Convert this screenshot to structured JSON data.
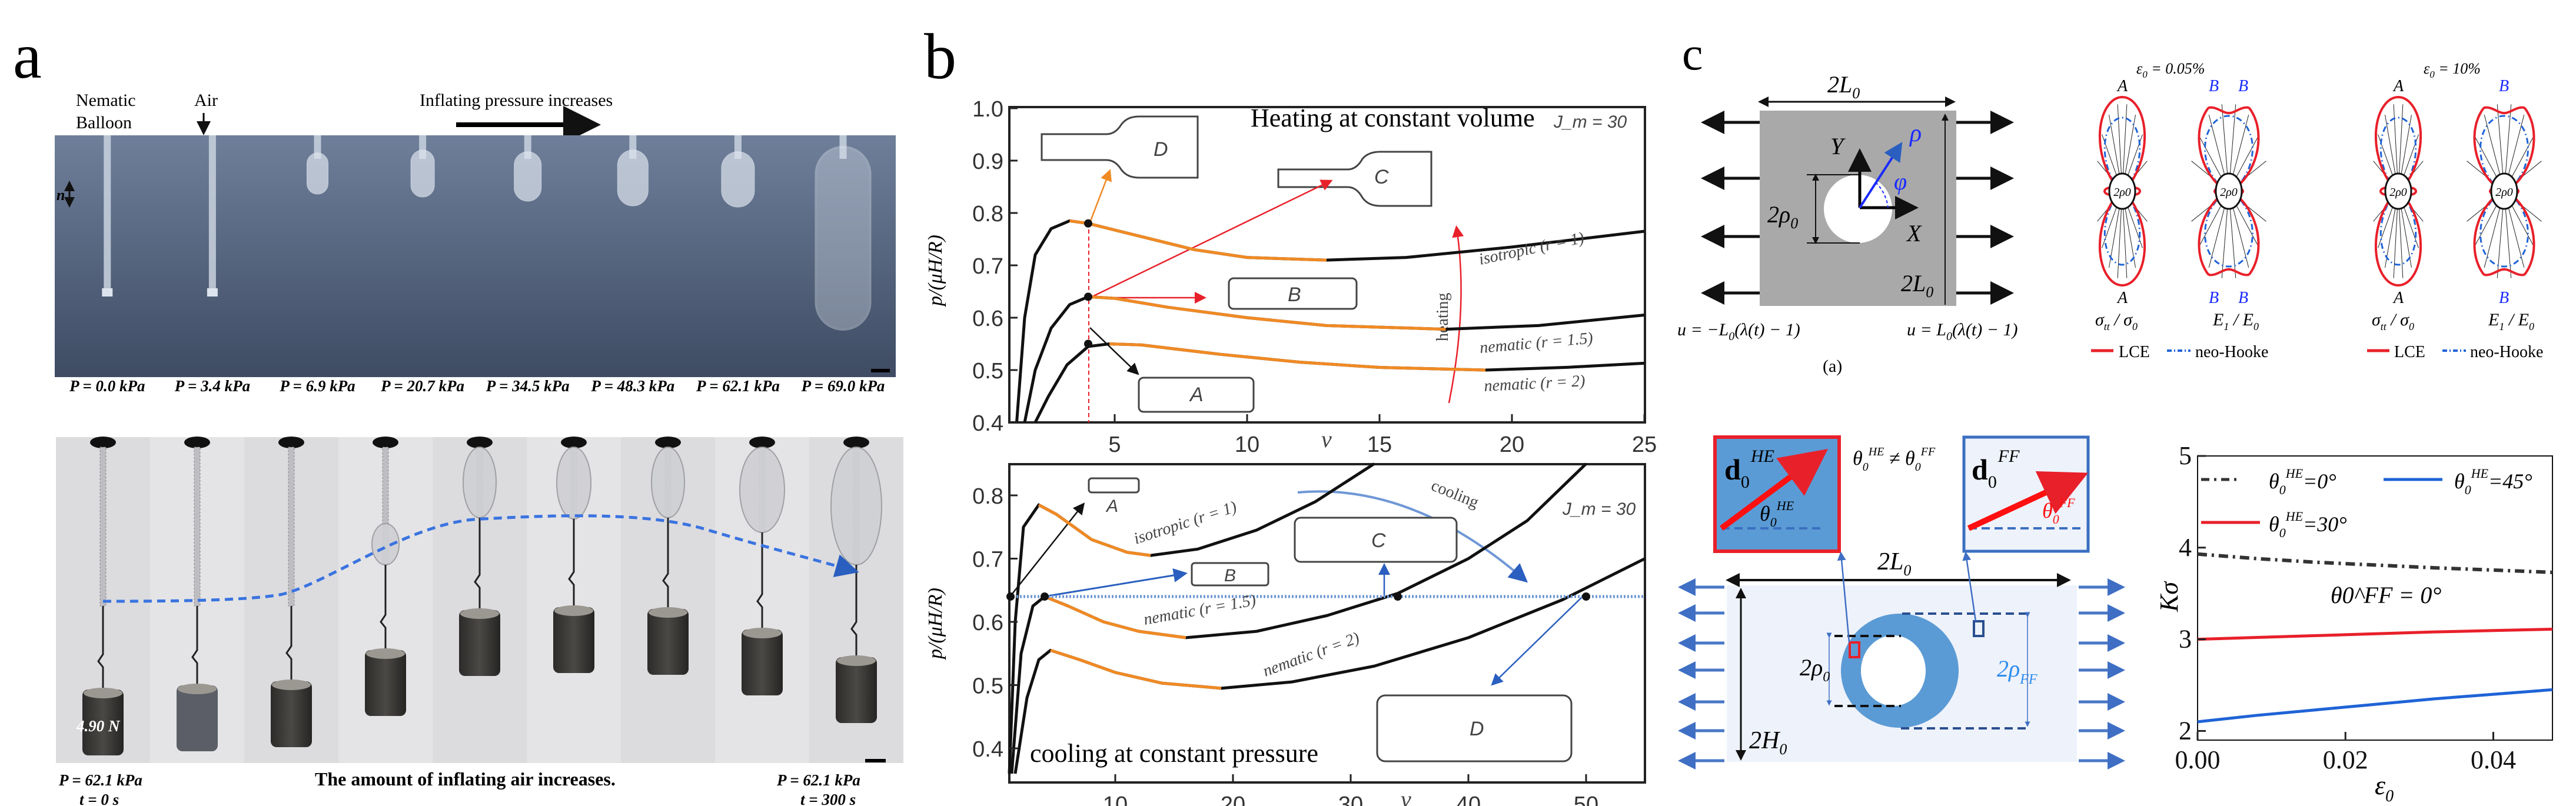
{
  "panel_a": {
    "label": "a",
    "top": {
      "sample_label_line1": "Nematic",
      "sample_label_line2": "Balloon",
      "air_label": "Air",
      "pressure_trend": "Inflating pressure increases",
      "director_label": "n",
      "pressures": [
        "P = 0.0 kPa",
        "P = 3.4 kPa",
        "P = 6.9 kPa",
        "P = 20.7 kPa",
        "P = 34.5 kPa",
        "P = 48.3 kPa",
        "P = 62.1 kPa",
        "P = 69.0 kPa"
      ]
    },
    "bottom": {
      "load": "4.90 N",
      "start_pressure": "P = 62.1 kPa",
      "start_time": "t = 0 s",
      "caption": "The amount of inflating air increases.",
      "end_pressure": "P = 62.1 kPa",
      "end_time": "t = 300 s"
    }
  },
  "panel_b": {
    "label": "b",
    "insets": {
      "A": "A",
      "B": "B",
      "C": "C",
      "D": "D"
    },
    "heating_label": "heating",
    "cooling_label": "cooling",
    "ylabel_num": "p",
    "ylabel_den": "μH/R",
    "jm": {
      "base": "J",
      "sub": "m",
      "rest": " = 30"
    }
  },
  "panel_c": {
    "label": "c",
    "schematic": {
      "width": {
        "base": "2L",
        "sub": "0"
      },
      "height": {
        "base": "2L",
        "sub": "0"
      },
      "hole": {
        "base": "2ρ",
        "sub": "0"
      },
      "axis_y": "Y",
      "axis_x": "X",
      "rho": "ρ",
      "phi": "φ",
      "bc_left": {
        "a": "u = −L",
        "sub": "0",
        "b": "(λ(t) − 1)"
      },
      "bc_right": {
        "a": "u = L",
        "sub": "0",
        "b": "(λ(t) − 1)"
      },
      "sublabel": "(a)"
    },
    "polar": [
      {
        "strain": {
          "base": "ε",
          "sub": "0",
          "rest": " = 0.05%"
        },
        "left_point": "A",
        "right_points": [
          "B",
          "B"
        ]
      },
      {
        "strain": {
          "base": "ε",
          "sub": "0",
          "rest": " = 10%"
        },
        "left_point": "A",
        "right_points": [
          "B"
        ]
      }
    ],
    "polar_axes": {
      "stress": {
        "a": "σ",
        "s1": "tt",
        "b": " / σ",
        "s2": "0"
      },
      "field": {
        "a": "E",
        "s1": "1",
        "b": " / E",
        "s2": "0"
      }
    },
    "polar_legend": {
      "lce": "LCE",
      "neo": "neo-Hooke"
    },
    "lower": {
      "he_vector": {
        "base": "d",
        "sub": "0",
        "sup": "HE"
      },
      "he_angle": {
        "base": "θ",
        "sub": "0",
        "sup": "HE"
      },
      "ff_vector": {
        "base": "d",
        "sub": "0",
        "sup": "FF"
      },
      "ff_angle": {
        "base": "θ",
        "sub": "0",
        "sup": "FF"
      },
      "inequality": {
        "a": "θ",
        "a_sub": "0",
        "a_sup": "HE",
        "op": " ≠ ",
        "b": "θ",
        "b_sub": "0",
        "b_sup": "FF"
      },
      "width": {
        "base": "2L",
        "sub": "0"
      },
      "hole": {
        "base": "2ρ",
        "sub": "0"
      },
      "ff_radius": {
        "base": "2ρ",
        "sub": "FF"
      },
      "height": {
        "base": "2H",
        "sub": "0"
      }
    }
  },
  "colors": {
    "orange": "#f08a24",
    "red": "#e8202a",
    "blue": "#1f63d6",
    "lightblue": "#5a9bd4",
    "black": "#111111"
  },
  "chart_data": [
    {
      "type": "line",
      "title": "Heating at constant volume",
      "annotation": "J_m = 30",
      "xlabel": "v",
      "ylabel": "p/(μH/R)",
      "xlim": [
        1,
        25
      ],
      "ylim": [
        0.4,
        1.0
      ],
      "xticks": [
        5,
        10,
        15,
        20,
        25
      ],
      "yticks": [
        0.4,
        0.5,
        0.6,
        0.7,
        0.8,
        0.9,
        1.0
      ],
      "series": [
        {
          "name": "isotropic (r = 1)",
          "unstable_range": [
            3.3,
            13
          ],
          "x": [
            1.3,
            1.6,
            2,
            2.6,
            3.3,
            4,
            6,
            8,
            10,
            13,
            16,
            20,
            25
          ],
          "y": [
            0.4,
            0.6,
            0.72,
            0.77,
            0.785,
            0.78,
            0.755,
            0.73,
            0.715,
            0.71,
            0.715,
            0.735,
            0.765
          ]
        },
        {
          "name": "nematic (r = 1.5)",
          "unstable_range": [
            4,
            17.5
          ],
          "x": [
            1.6,
            2,
            2.6,
            3.3,
            4,
            5,
            7,
            10,
            13,
            17.5,
            21,
            25
          ],
          "y": [
            0.4,
            0.5,
            0.58,
            0.625,
            0.64,
            0.637,
            0.62,
            0.6,
            0.585,
            0.578,
            0.585,
            0.605
          ]
        },
        {
          "name": "nematic (r = 2)",
          "unstable_range": [
            4.8,
            19
          ],
          "x": [
            2,
            2.5,
            3.2,
            4,
            4.8,
            6,
            9,
            12,
            15,
            19,
            22,
            25
          ],
          "y": [
            0.4,
            0.45,
            0.51,
            0.545,
            0.55,
            0.548,
            0.53,
            0.515,
            0.505,
            0.5,
            0.505,
            0.513
          ]
        }
      ],
      "marked_points": [
        {
          "x": 4,
          "y": 0.78
        },
        {
          "x": 4,
          "y": 0.64
        },
        {
          "x": 4,
          "y": 0.55
        }
      ]
    },
    {
      "type": "line",
      "title": "cooling at constant pressure",
      "annotation": "J_m = 30",
      "xlabel": "v",
      "ylabel": "p/(μH/R)",
      "xlim": [
        1,
        55
      ],
      "ylim": [
        0.35,
        0.85
      ],
      "xticks": [
        10,
        20,
        30,
        40,
        50
      ],
      "yticks": [
        0.4,
        0.5,
        0.6,
        0.7,
        0.8
      ],
      "constant_pressure": 0.64,
      "series": [
        {
          "name": "isotropic (r = 1)",
          "unstable_range": [
            3.5,
            13
          ],
          "x": [
            1,
            1.5,
            2.2,
            3.5,
            5,
            8,
            11,
            13,
            17,
            22,
            27,
            32
          ],
          "y": [
            0.36,
            0.6,
            0.75,
            0.785,
            0.77,
            0.73,
            0.71,
            0.705,
            0.715,
            0.745,
            0.79,
            0.85
          ]
        },
        {
          "name": "nematic (r = 1.5)",
          "unstable_range": [
            4,
            16
          ],
          "x": [
            1.2,
            2,
            3,
            4,
            6,
            9,
            12,
            16,
            22,
            28,
            34,
            40,
            45,
            50
          ],
          "y": [
            0.36,
            0.55,
            0.625,
            0.64,
            0.625,
            0.6,
            0.585,
            0.575,
            0.585,
            0.61,
            0.645,
            0.7,
            0.76,
            0.85
          ]
        },
        {
          "name": "nematic (r = 2)",
          "unstable_range": [
            4.5,
            19
          ],
          "x": [
            1.5,
            2.5,
            3.5,
            4.5,
            7,
            10,
            14,
            19,
            25,
            32,
            40,
            48,
            55
          ],
          "y": [
            0.36,
            0.48,
            0.54,
            0.555,
            0.54,
            0.52,
            0.503,
            0.495,
            0.505,
            0.53,
            0.575,
            0.635,
            0.7
          ]
        }
      ],
      "marked_points": [
        {
          "x": 1.1,
          "y": 0.64
        },
        {
          "x": 4,
          "y": 0.64
        },
        {
          "x": 34,
          "y": 0.64
        },
        {
          "x": 50,
          "y": 0.64
        }
      ]
    },
    {
      "type": "line",
      "xlabel": "ε0",
      "ylabel": "Kσ",
      "xlim": [
        0,
        0.048
      ],
      "ylim": [
        1.9,
        5
      ],
      "xticks": [
        0.0,
        0.02,
        0.04
      ],
      "yticks": [
        2,
        3,
        4,
        5
      ],
      "annotation": "θ0^FF = 0°",
      "legend_position": "top",
      "series": [
        {
          "name": "θ0^HE=0°",
          "style": "dash-dot",
          "color": "#333333",
          "x": [
            0,
            0.008,
            0.016,
            0.024,
            0.032,
            0.04,
            0.048
          ],
          "y": [
            3.93,
            3.88,
            3.84,
            3.81,
            3.78,
            3.755,
            3.73
          ]
        },
        {
          "name": "θ0^HE=30°",
          "style": "solid",
          "color": "#e8202a",
          "x": [
            0,
            0.008,
            0.016,
            0.024,
            0.032,
            0.04,
            0.048
          ],
          "y": [
            3.0,
            3.02,
            3.04,
            3.06,
            3.08,
            3.095,
            3.11
          ]
        },
        {
          "name": "θ0^HE=45°",
          "style": "solid",
          "color": "#1f63d6",
          "x": [
            0,
            0.008,
            0.016,
            0.024,
            0.032,
            0.04,
            0.048
          ],
          "y": [
            2.1,
            2.17,
            2.23,
            2.29,
            2.35,
            2.4,
            2.45
          ]
        }
      ],
      "legend_labels": [
        {
          "base": "θ",
          "sub": "0",
          "sup": "HE",
          "rest": "=0°"
        },
        {
          "base": "θ",
          "sub": "0",
          "sup": "HE",
          "rest": "=30°"
        },
        {
          "base": "θ",
          "sub": "0",
          "sup": "HE",
          "rest": "=45°"
        }
      ],
      "annotation_parts": {
        "base": "θ",
        "sub": "0",
        "sup": "FF",
        "rest": " = 0°"
      },
      "ylabel_parts": {
        "base": "K",
        "sub": "σ"
      },
      "xlabel_parts": {
        "base": "ε",
        "sub": "0"
      }
    }
  ]
}
